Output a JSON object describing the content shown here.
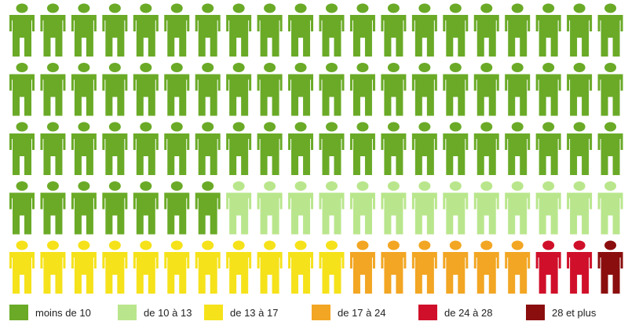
{
  "chart_data": {
    "type": "pictogram",
    "title": "",
    "unit_icon": "person-icon",
    "rows": 5,
    "columns": 20,
    "categories": [
      "moins de 10",
      "de 10 à 13",
      "de 13 à 17",
      "de 17 à 24",
      "de 24 à 28",
      "28 et plus"
    ],
    "values": [
      67,
      13,
      11,
      6,
      2,
      1
    ],
    "colors": [
      "#6aaa27",
      "#b9e68c",
      "#f5e21a",
      "#f2a623",
      "#d0102a",
      "#8b0e0e"
    ],
    "legend_position": "bottom"
  }
}
